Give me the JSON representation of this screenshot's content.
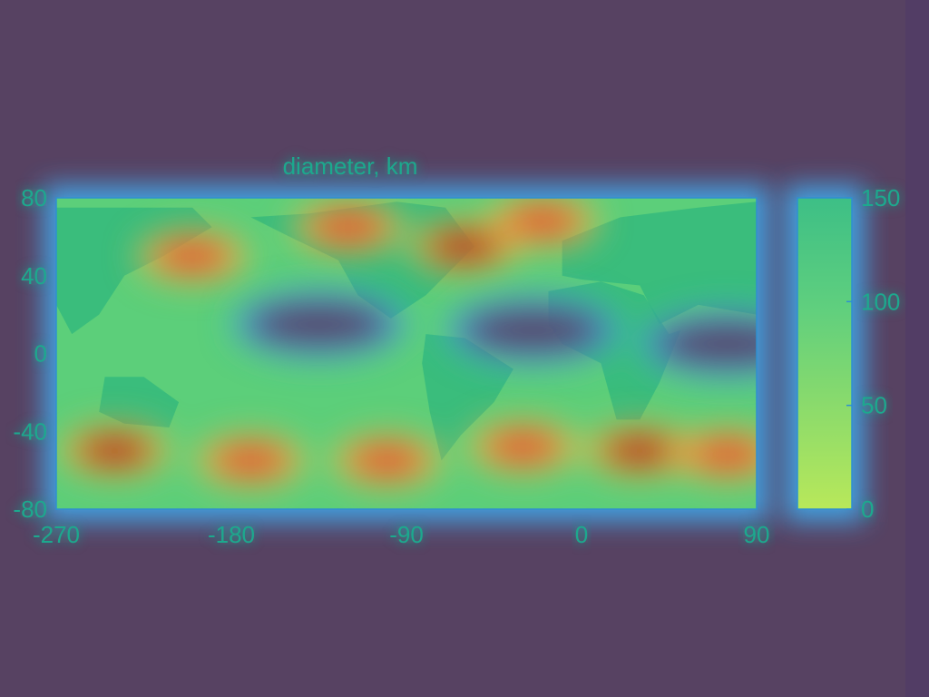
{
  "chart_data": {
    "type": "heatmap",
    "title": "diameter, km",
    "xlabel": "",
    "ylabel": "",
    "x_ticks": [
      -270,
      -180,
      -90,
      0,
      90
    ],
    "y_ticks": [
      80,
      40,
      0,
      -40,
      -80
    ],
    "xlim": [
      -270,
      90
    ],
    "ylim": [
      -80,
      80
    ],
    "colorbar": {
      "ticks": [
        150,
        100,
        50,
        0
      ],
      "range": [
        0,
        150
      ],
      "colors": [
        "#7dd96a",
        "#b8e85a",
        "#5fcf7e",
        "#3dbf86"
      ]
    },
    "overlay_colormap": [
      "#2a4bd4",
      "#3fa8f0",
      "#33d49c",
      "#9be24a",
      "#f3e24d",
      "#f6a64b",
      "#e24a2a",
      "#b31a12"
    ],
    "hotspots": [
      {
        "lon": -200,
        "lat": 50,
        "level": 0.92
      },
      {
        "lon": -120,
        "lat": 65,
        "level": 0.8
      },
      {
        "lon": -60,
        "lat": 55,
        "level": 0.95
      },
      {
        "lon": -20,
        "lat": 68,
        "level": 0.9
      },
      {
        "lon": -240,
        "lat": -50,
        "level": 0.95
      },
      {
        "lon": -170,
        "lat": -55,
        "level": 0.92
      },
      {
        "lon": -100,
        "lat": -55,
        "level": 0.88
      },
      {
        "lon": -30,
        "lat": -48,
        "level": 0.92
      },
      {
        "lon": 30,
        "lat": -50,
        "level": 0.95
      },
      {
        "lon": 75,
        "lat": -52,
        "level": 0.9
      }
    ],
    "cold_regions": [
      {
        "lon": -135,
        "lat": 15
      },
      {
        "lon": -25,
        "lat": 12
      },
      {
        "lon": 75,
        "lat": 5
      }
    ]
  }
}
